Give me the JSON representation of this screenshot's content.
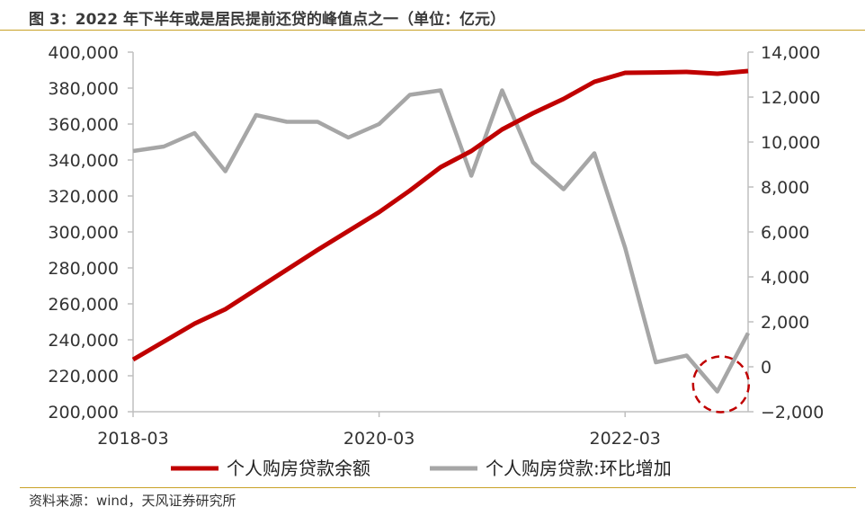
{
  "title": "图 3：2022 年下半年或是居民提前还贷的峰值点之一（单位：亿元）",
  "source": "资料来源：wind，天风证券研究所",
  "chart_data": {
    "type": "line",
    "x": [
      "2018-03",
      "2018-06",
      "2018-09",
      "2018-12",
      "2019-03",
      "2019-06",
      "2019-09",
      "2019-12",
      "2020-03",
      "2020-06",
      "2020-09",
      "2020-12",
      "2021-03",
      "2021-06",
      "2021-09",
      "2021-12",
      "2022-03",
      "2022-06",
      "2022-09",
      "2022-12",
      "2023-03"
    ],
    "x_tick_labels": [
      "2018-03",
      "2020-03",
      "2022-03"
    ],
    "y_left": {
      "lim": [
        200000,
        400000
      ],
      "ticks": [
        200000,
        220000,
        240000,
        260000,
        280000,
        300000,
        320000,
        340000,
        360000,
        380000,
        400000
      ],
      "tick_labels": [
        "200,000",
        "220,000",
        "240,000",
        "260,000",
        "280,000",
        "300,000",
        "320,000",
        "340,000",
        "360,000",
        "380,000",
        "400,000"
      ]
    },
    "y_right": {
      "lim": [
        -2000,
        14000
      ],
      "ticks": [
        -2000,
        0,
        2000,
        4000,
        6000,
        8000,
        10000,
        12000,
        14000
      ],
      "tick_labels": [
        "−2,000",
        "0",
        "2,000",
        "4,000",
        "6,000",
        "8,000",
        "10,000",
        "12,000",
        "14,000"
      ]
    },
    "series": [
      {
        "name": "个人购房贷款余额",
        "axis": "left",
        "color": "#c00000",
        "values": [
          229000,
          239000,
          249000,
          257000,
          268000,
          279000,
          290000,
          300500,
          311000,
          323000,
          336000,
          345000,
          357000,
          366000,
          374000,
          383500,
          388500,
          388700,
          389000,
          388000,
          389500
        ]
      },
      {
        "name": "个人购房贷款:环比增加",
        "axis": "right",
        "color": "#a6a6a6",
        "values": [
          9600,
          9800,
          10400,
          8700,
          11200,
          10900,
          10900,
          10200,
          10800,
          12100,
          12300,
          8500,
          12300,
          9100,
          7900,
          9500,
          5300,
          200,
          500,
          -1100,
          1500
        ]
      }
    ],
    "annotation": {
      "type": "dashed-circle",
      "color": "#c00000",
      "target_series": 1,
      "target_index": 19
    },
    "grid": false,
    "legend": "bottom"
  }
}
